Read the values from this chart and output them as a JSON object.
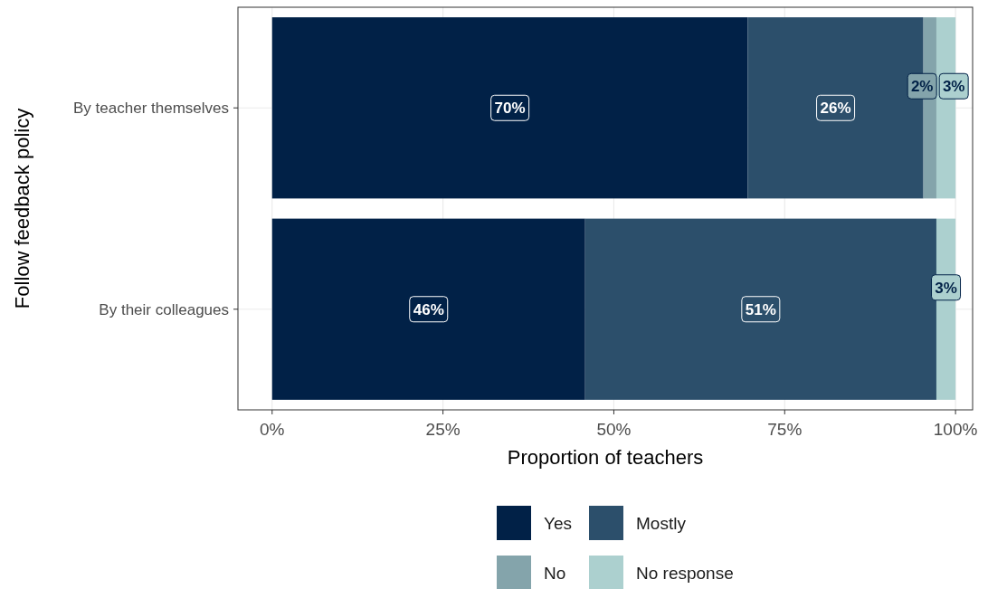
{
  "chart_data": {
    "type": "bar",
    "orientation": "horizontal",
    "stacked": true,
    "xlabel": "Proportion of teachers",
    "ylabel": "Follow feedback policy",
    "categories": [
      "By teacher themselves",
      "By their colleagues"
    ],
    "series": [
      {
        "name": "Yes",
        "color": "#012147",
        "values": [
          69.6,
          45.8
        ],
        "value_labels": [
          "70%",
          "46%"
        ]
      },
      {
        "name": "Mostly",
        "color": "#2c4f6b",
        "values": [
          25.7,
          51.4
        ],
        "value_labels": [
          "26%",
          "51%"
        ]
      },
      {
        "name": "No",
        "color": "#84a4ab",
        "values": [
          1.9,
          0
        ],
        "value_labels": [
          "2%",
          null
        ]
      },
      {
        "name": "No response",
        "color": "#acd0cf",
        "values": [
          2.8,
          2.8
        ],
        "value_labels": [
          "3%",
          "3%"
        ]
      }
    ],
    "xlim": [
      -5,
      102.5
    ],
    "xticks": [
      {
        "value": 0,
        "label": "0%"
      },
      {
        "value": 25,
        "label": "25%"
      },
      {
        "value": 50,
        "label": "50%"
      },
      {
        "value": 75,
        "label": "75%"
      },
      {
        "value": 100,
        "label": "100%"
      }
    ],
    "grid": true,
    "legend": "bottom"
  }
}
